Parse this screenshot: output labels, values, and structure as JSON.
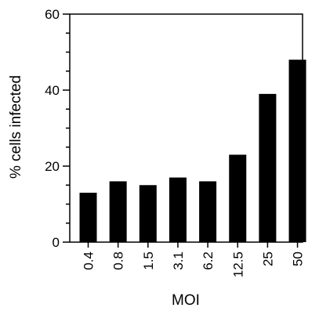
{
  "chart_data": {
    "type": "bar",
    "title": "",
    "xlabel": "MOI",
    "ylabel": "% cells infected",
    "categories": [
      "0.4",
      "0.8",
      "1.5",
      "3.1",
      "6.2",
      "12.5",
      "25",
      "50"
    ],
    "values": [
      13,
      16,
      15,
      17,
      16,
      23,
      39,
      48
    ],
    "ylim": [
      0,
      60
    ],
    "y_major_ticks": [
      0,
      20,
      40,
      60
    ],
    "y_minor_step": 5,
    "grid": false,
    "legend": "none",
    "bar_color": "#000000"
  }
}
